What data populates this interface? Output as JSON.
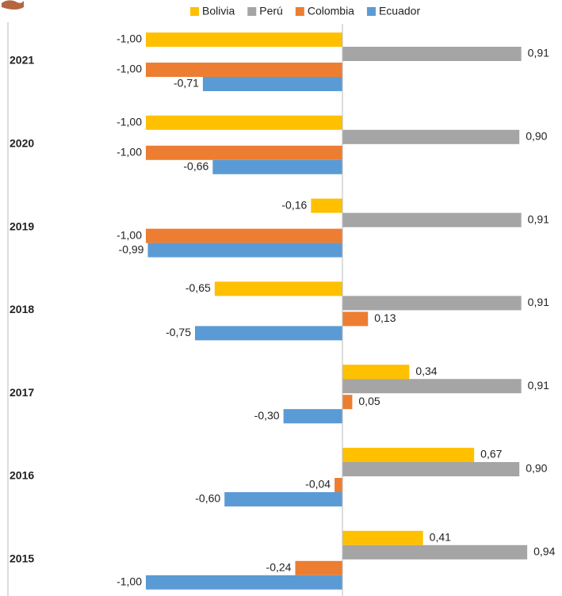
{
  "chart_data": {
    "type": "bar",
    "orientation": "horizontal",
    "categories": [
      "2021",
      "2020",
      "2019",
      "2018",
      "2017",
      "2016",
      "2015"
    ],
    "series": [
      {
        "name": "Bolivia",
        "color": "#ffc000",
        "values": [
          -1.0,
          -1.0,
          -0.16,
          -0.65,
          0.34,
          0.67,
          0.41
        ],
        "value_labels": [
          "-1,00",
          "-1,00",
          "-0,16",
          "-0,65",
          "0,34",
          "0,67",
          "0,41"
        ]
      },
      {
        "name": "Perú",
        "color": "#a5a5a5",
        "values": [
          0.91,
          0.9,
          0.91,
          0.91,
          0.91,
          0.9,
          0.94
        ],
        "value_labels": [
          "0,91",
          "0,90",
          "0,91",
          "0,91",
          "0,91",
          "0,90",
          "0,94"
        ]
      },
      {
        "name": "Colombia",
        "color": "#ed7d31",
        "values": [
          -1.0,
          -1.0,
          -1.0,
          0.13,
          0.05,
          -0.04,
          -0.24
        ],
        "value_labels": [
          "-1,00",
          "-1,00",
          "-1,00",
          "0,13",
          "0,05",
          "-0,04",
          "-0,24"
        ]
      },
      {
        "name": "Ecuador",
        "color": "#5b9bd5",
        "values": [
          -0.71,
          -0.66,
          -0.99,
          -0.75,
          -0.3,
          -0.6,
          -1.0
        ],
        "value_labels": [
          "-0,71",
          "-0,66",
          "-0,99",
          "-0,75",
          "-0,30",
          "-0,60",
          "-1,00"
        ]
      }
    ],
    "xlim": [
      -1,
      1
    ],
    "legend": "top"
  }
}
